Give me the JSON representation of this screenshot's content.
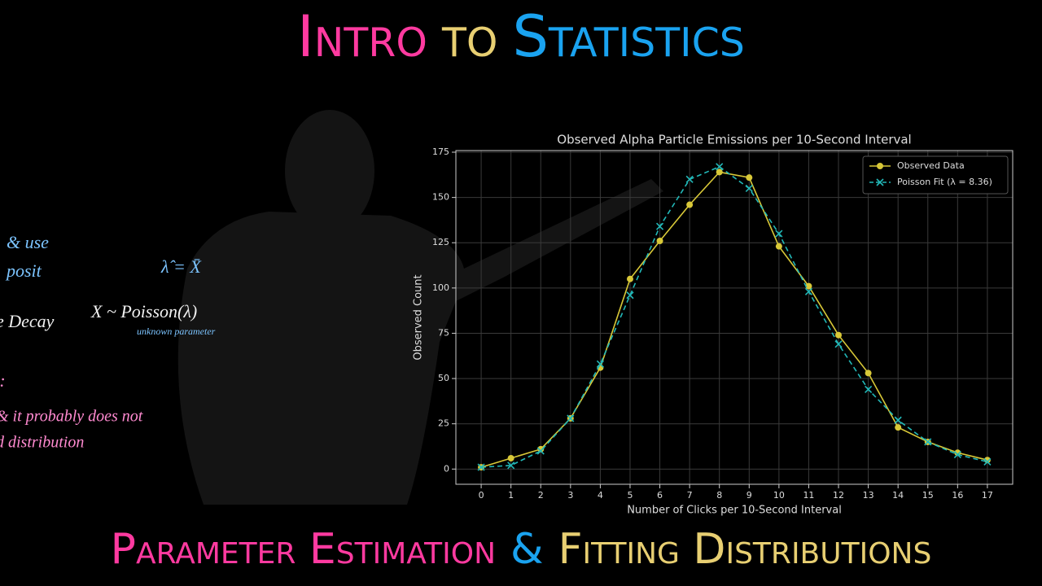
{
  "header": {
    "parts": [
      {
        "text": "Intro",
        "color": "#ff3aa0"
      },
      {
        "text": "to",
        "color": "#e8cf72"
      },
      {
        "text": "Statistics",
        "color": "#1aa3f0"
      }
    ]
  },
  "footer": {
    "parts": [
      {
        "text": "Parameter Estimation",
        "color": "#ff3aa0"
      },
      {
        "text": "&",
        "color": "#1aa3f0"
      },
      {
        "text": "Fitting Distributions",
        "color": "#e8cf72"
      }
    ]
  },
  "handwriting": [
    {
      "text": "& use",
      "color": "#7cc4ff"
    },
    {
      "text": "posit",
      "color": "#7cc4ff"
    },
    {
      "text": "e Decay",
      "color": "#f0f0f0"
    },
    {
      "text": "X ~ Poisson(λ)",
      "color": "#f0f0f0"
    },
    {
      "text": "λ̂ = X̄",
      "color": "#7cc4ff"
    },
    {
      "text": "unknown parameter",
      "color": "#7cc4ff"
    },
    {
      "text": "):",
      "color": "#ff8ad0"
    },
    {
      "text": "& it probably does not",
      "color": "#ff8ad0"
    },
    {
      "text": "d distribution",
      "color": "#ff8ad0"
    }
  ],
  "chart_data": {
    "type": "line",
    "title": "Observed Alpha Particle Emissions per 10-Second Interval",
    "x_label": "Number of Clicks per 10-Second Interval",
    "y_label": "Observed Count",
    "x": [
      0,
      1,
      2,
      3,
      4,
      5,
      6,
      7,
      8,
      9,
      10,
      11,
      12,
      13,
      14,
      15,
      16,
      17
    ],
    "series": [
      {
        "name": "Observed Data",
        "color": "#d8c838",
        "marker": "circle",
        "dashed": false,
        "values": [
          1,
          6,
          11,
          28,
          56,
          105,
          126,
          146,
          164,
          161,
          123,
          101,
          74,
          53,
          23,
          15,
          9,
          5
        ]
      },
      {
        "name": "Poisson Fit (λ = 8.36)",
        "color": "#22b8b8",
        "marker": "x",
        "dashed": true,
        "values": [
          1,
          2,
          10,
          28,
          58,
          96,
          134,
          160,
          167,
          155,
          130,
          98,
          69,
          44,
          27,
          15,
          8,
          4
        ]
      }
    ],
    "xlim": [
      -0.85,
      17.85
    ],
    "ylim": [
      -8.4,
      175.9
    ],
    "xticks": [
      0,
      1,
      2,
      3,
      4,
      5,
      6,
      7,
      8,
      9,
      10,
      11,
      12,
      13,
      14,
      15,
      16,
      17
    ],
    "yticks": [
      0,
      25,
      50,
      75,
      100,
      125,
      150,
      175
    ],
    "grid": true,
    "legend": "upper-right"
  }
}
